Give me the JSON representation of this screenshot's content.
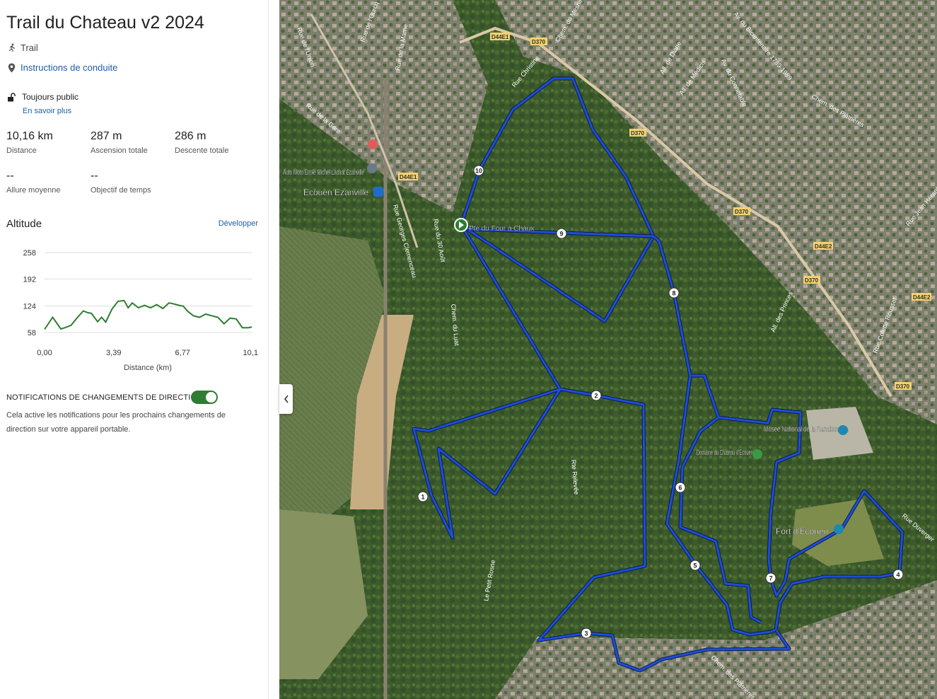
{
  "route": {
    "title": "Trail du Chateau v2 2024",
    "activity": "Trail",
    "directions_link": "Instructions de conduite",
    "visibility": "Toujours public",
    "learn_more": "En savoir plus"
  },
  "stats": [
    {
      "value": "10,16 km",
      "label": "Distance"
    },
    {
      "value": "287 m",
      "label": "Ascension totale"
    },
    {
      "value": "286 m",
      "label": "Descente totale"
    },
    {
      "value": "--",
      "label": "Allure moyenne"
    },
    {
      "value": "--",
      "label": "Objectif de temps"
    }
  ],
  "altitude": {
    "title": "Altitude",
    "expand_label": "Développer"
  },
  "chart_data": {
    "type": "area",
    "title": "",
    "xlabel": "Distance (km)",
    "ylabel": "",
    "x_ticks": [
      "0,00",
      "3,39",
      "6,77",
      "10,1"
    ],
    "y_ticks": [
      "258",
      "192",
      "124",
      "58"
    ],
    "xlim": [
      0,
      10.16
    ],
    "ylim": [
      58,
      258
    ],
    "line_color": "#2e7d32",
    "x": [
      0,
      0.4,
      0.8,
      1.0,
      1.3,
      1.6,
      1.9,
      2.1,
      2.3,
      2.6,
      2.8,
      3.0,
      3.3,
      3.6,
      3.9,
      4.1,
      4.3,
      4.6,
      4.9,
      5.2,
      5.5,
      5.8,
      6.1,
      6.3,
      6.6,
      6.8,
      7.0,
      7.3,
      7.6,
      7.9,
      8.2,
      8.5,
      8.8,
      9.1,
      9.4,
      9.7,
      10.0,
      10.16
    ],
    "y": [
      66,
      96,
      67,
      70,
      76,
      95,
      112,
      108,
      106,
      85,
      96,
      84,
      116,
      136,
      138,
      120,
      132,
      120,
      126,
      120,
      128,
      118,
      132,
      130,
      126,
      124,
      112,
      100,
      96,
      104,
      100,
      96,
      80,
      94,
      92,
      70,
      70,
      72
    ]
  },
  "notifications": {
    "title": "NOTIFICATIONS DE CHANGEMENTS DE DIRECTION",
    "description": "Cela active les notifications pour les prochains changements de direction sur votre appareil portable.",
    "enabled": true
  },
  "map": {
    "route_color": "#1d4ed8",
    "waypoints": [
      "1",
      "2",
      "3",
      "4",
      "5",
      "6",
      "7",
      "8",
      "9",
      "10"
    ],
    "labels": {
      "station": "Ecouen Ezanville",
      "school": "Auto Moto Ecole Michel Lachat Ezanville",
      "start": "Pte du Four à Chaux",
      "museum": "Musée National de la Renaissance",
      "domain": "Domaine du Château d'Ecouen",
      "fort": "Fort d'Ecouen"
    },
    "streets": [
      "Rue de l'Union",
      "Rue de l'Ourcq",
      "Rue de la Marne",
      "Rue Christine",
      "Chem. du Mesnil",
      "D370",
      "D44E1",
      "Av. du Bicentenaire 1789-1989",
      "All. de Diane",
      "All. de Médicis",
      "Av. du Connétable",
      "Rue de la Gare",
      "Rue Georges Clemenceau",
      "Rue du 30 Août",
      "Chem. du Luat",
      "Rte Relevée",
      "Le Petit Rosne",
      "Chem. des Plâtrières",
      "Rue Colette Rousset",
      "Rue Jean Hérard",
      "Rue Duverger",
      "D44E2",
      "All. des Princes"
    ]
  }
}
